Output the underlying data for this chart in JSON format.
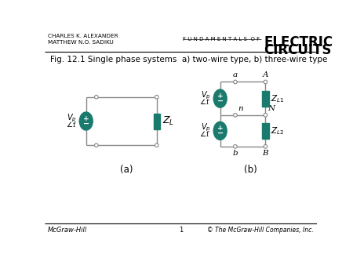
{
  "bg_color": "#ffffff",
  "teal_color": "#1a7a6e",
  "wire_color": "#888888",
  "title_text": "Fig. 12.1 Single phase systems  a) two-wire type, b) three-wire type",
  "header_author": "CHARLES K. ALEXANDER\nMATTHEW N.O. SADIKU",
  "header_fund": "F U N D A M E N T A L S  O F",
  "header_ec1": "ELECTRIC",
  "header_ec2": "CIRCUITS",
  "footer_left": "McGraw-Hill",
  "footer_center": "1",
  "footer_right": "© The McGraw-Hill Companies, Inc.",
  "label_a": "(a)",
  "label_b": "(b)"
}
